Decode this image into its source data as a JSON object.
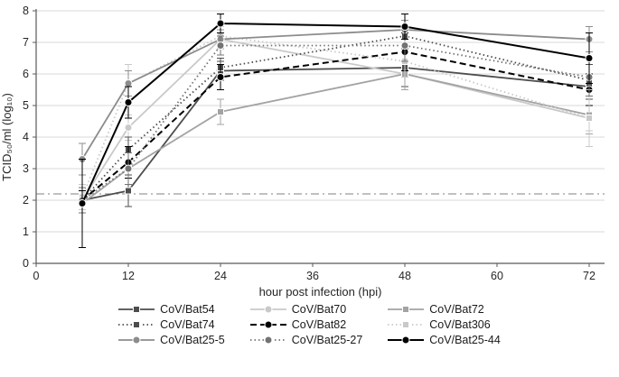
{
  "chart_data": {
    "type": "line",
    "title": "",
    "xlabel": "hour post infection (hpi)",
    "ylabel": "TCID₅₀/ml (log₁₀)",
    "xlim": [
      0,
      74
    ],
    "ylim": [
      0,
      8
    ],
    "xticks": [
      0,
      12,
      24,
      36,
      48,
      60,
      72
    ],
    "yticks": [
      0,
      1,
      2,
      3,
      4,
      5,
      6,
      7,
      8
    ],
    "grid": "horizontal",
    "legend_position": "bottom",
    "detection_limit": 2.2,
    "x": [
      6,
      12,
      24,
      48,
      72
    ],
    "series": [
      {
        "name": "CoV/Bat54",
        "color": "#4d4d4d",
        "dash": "solid",
        "marker": "square",
        "values": [
          2.0,
          2.3,
          6.1,
          6.2,
          5.6
        ],
        "errors": [
          0.4,
          0.5,
          0.3,
          0.6,
          0.4
        ]
      },
      {
        "name": "CoV/Bat70",
        "color": "#c9c9c9",
        "dash": "solid",
        "marker": "circle",
        "values": [
          2.0,
          4.3,
          7.1,
          6.0,
          4.6
        ],
        "errors": [
          0.3,
          0.4,
          0.3,
          0.5,
          0.4
        ]
      },
      {
        "name": "CoV/Bat72",
        "color": "#a3a3a3",
        "dash": "solid",
        "marker": "square",
        "values": [
          1.9,
          3.0,
          4.8,
          6.0,
          4.7
        ],
        "errors": [
          0.3,
          0.5,
          0.4,
          0.5,
          0.6
        ]
      },
      {
        "name": "CoV/Bat74",
        "color": "#4d4d4d",
        "dash": "dotted",
        "marker": "square",
        "values": [
          2.0,
          3.6,
          6.2,
          7.2,
          5.8
        ],
        "errors": [
          0.4,
          0.4,
          0.3,
          0.3,
          0.5
        ]
      },
      {
        "name": "CoV/Bat82",
        "color": "#000000",
        "dash": "dashed",
        "marker": "circle",
        "values": [
          2.0,
          3.2,
          5.9,
          6.7,
          5.5
        ],
        "errors": [
          0.3,
          0.5,
          0.4,
          0.6,
          0.5
        ]
      },
      {
        "name": "CoV/Bat306",
        "color": "#c9c9c9",
        "dash": "dotted",
        "marker": "square",
        "values": [
          2.1,
          5.7,
          7.2,
          6.4,
          4.6
        ],
        "errors": [
          0.4,
          0.6,
          0.3,
          0.5,
          0.9
        ]
      },
      {
        "name": "CoV/Bat25-5",
        "color": "#8c8c8c",
        "dash": "solid",
        "marker": "circle",
        "values": [
          3.3,
          5.7,
          7.1,
          7.4,
          7.1
        ],
        "errors": [
          0.5,
          0.4,
          0.3,
          0.3,
          0.4
        ]
      },
      {
        "name": "CoV/Bat25-27",
        "color": "#737373",
        "dash": "dotted",
        "marker": "circle",
        "values": [
          2.0,
          3.0,
          6.9,
          6.9,
          5.9
        ],
        "errors": [
          0.4,
          0.5,
          0.3,
          0.5,
          0.6
        ]
      },
      {
        "name": "CoV/Bat25-44",
        "color": "#000000",
        "dash": "solid",
        "marker": "circle",
        "values": [
          1.9,
          5.1,
          7.6,
          7.5,
          6.5
        ],
        "errors": [
          1.4,
          0.5,
          0.3,
          0.4,
          0.8
        ]
      }
    ]
  }
}
